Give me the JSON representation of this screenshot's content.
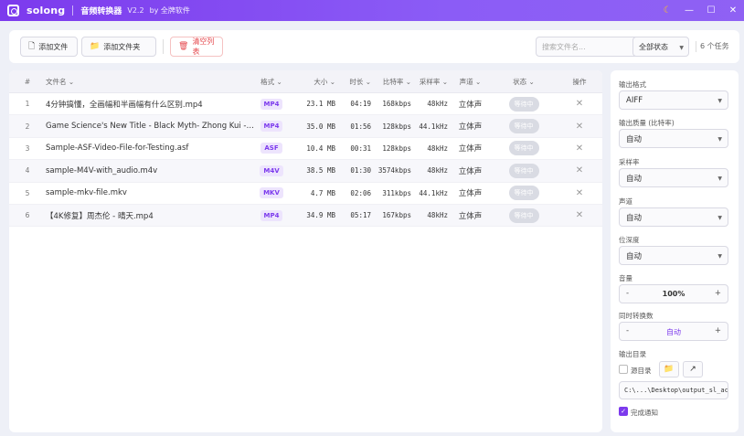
{
  "window": {
    "app_name": "solong",
    "subtitle": "音频转换器",
    "version": "V2.2",
    "by": "by 全牌软件",
    "controls": {
      "theme": "☾",
      "minimize": "—",
      "maximize": "☐",
      "close": "✕"
    }
  },
  "toolbar": {
    "add_file": "添加文件",
    "add_folder": "添加文件夹",
    "clear_list": "清空列表",
    "search_placeholder": "搜索文件名...",
    "status_filter": "全部状态",
    "task_count": "6 个任务"
  },
  "table": {
    "headers": {
      "index": "#",
      "name": "文件名 ⌄",
      "format": "格式 ⌄",
      "size": "大小 ⌄",
      "duration": "时长 ⌄",
      "bitrate": "比特率 ⌄",
      "samplerate": "采样率 ⌄",
      "channels": "声道 ⌄",
      "status": "状态 ⌄",
      "actions": "操作"
    },
    "rows": [
      {
        "index": "1",
        "name": "4分钟搞懂，全画幅和半画幅有什么区别.mp4",
        "format": "MP4",
        "size": "23.1 MB",
        "duration": "04:19",
        "bitrate": "168kbps",
        "samplerate": "48kHz",
        "channels": "立体声",
        "status": "等待中",
        "delete": "✕"
      },
      {
        "index": "2",
        "name": "Game Science's New Title - Black Myth- Zhong Kui - T...",
        "format": "MP4",
        "size": "35.0 MB",
        "duration": "01:56",
        "bitrate": "128kbps",
        "samplerate": "44.1kHz",
        "channels": "立体声",
        "status": "等待中",
        "delete": "✕"
      },
      {
        "index": "3",
        "name": "Sample-ASF-Video-File-for-Testing.asf",
        "format": "ASF",
        "size": "10.4 MB",
        "duration": "00:31",
        "bitrate": "128kbps",
        "samplerate": "48kHz",
        "channels": "立体声",
        "status": "等待中",
        "delete": "✕"
      },
      {
        "index": "4",
        "name": "sample-M4V-with_audio.m4v",
        "format": "M4V",
        "size": "38.5 MB",
        "duration": "01:30",
        "bitrate": "3574kbps",
        "samplerate": "48kHz",
        "channels": "立体声",
        "status": "等待中",
        "delete": "✕"
      },
      {
        "index": "5",
        "name": "sample-mkv-file.mkv",
        "format": "MKV",
        "size": "4.7 MB",
        "duration": "02:06",
        "bitrate": "311kbps",
        "samplerate": "44.1kHz",
        "channels": "立体声",
        "status": "等待中",
        "delete": "✕"
      },
      {
        "index": "6",
        "name": "【4K修复】周杰伦 - 晴天.mp4",
        "format": "MP4",
        "size": "34.9 MB",
        "duration": "05:17",
        "bitrate": "167kbps",
        "samplerate": "48kHz",
        "channels": "立体声",
        "status": "等待中",
        "delete": "✕"
      }
    ]
  },
  "settings": {
    "output_format": {
      "label": "输出格式",
      "value": "AIFF"
    },
    "quality": {
      "label": "输出质量 (比特率)",
      "value": "自动"
    },
    "samplerate": {
      "label": "采样率",
      "value": "自动"
    },
    "channels": {
      "label": "声道",
      "value": "自动"
    },
    "bitdepth": {
      "label": "位深度",
      "value": "自动"
    },
    "volume": {
      "label": "音量",
      "value": "100%",
      "minus": "-",
      "plus": "+"
    },
    "concurrency": {
      "label": "同时转换数",
      "value": "自动",
      "minus": "-",
      "plus": "+"
    },
    "output_dir": {
      "label": "输出目录",
      "source_dir_label": "源目录",
      "folder_icon": "📁",
      "open_icon": "↗",
      "path": "C:\\...\\Desktop\\output_sl_ac"
    },
    "notify": {
      "label": "完成通知",
      "check": "✓"
    }
  },
  "colors": {
    "accent": "#7c3aed",
    "danger": "#e5484d"
  }
}
